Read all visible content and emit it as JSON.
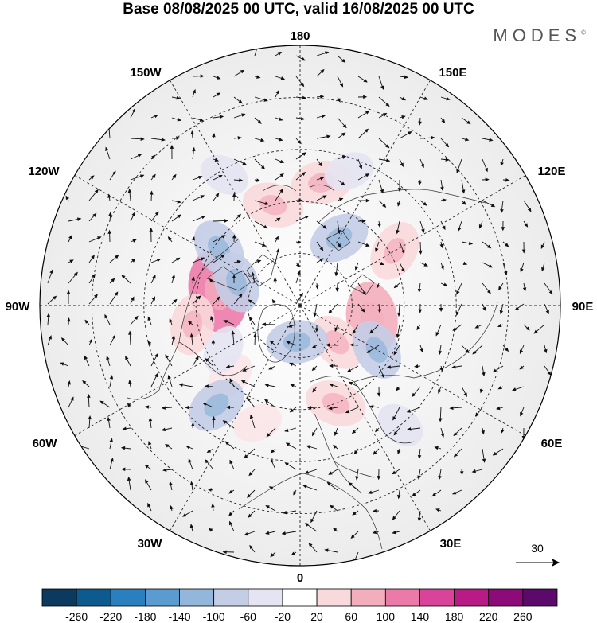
{
  "title": "Base 08/08/2025 00 UTC, valid 16/08/2025 00 UTC",
  "brand": "MODES",
  "brand_mark": "©",
  "longitude_labels": {
    "top": "180",
    "bottom": "0",
    "left": "90W",
    "right": "90E",
    "upper_left": "150W",
    "upper_right": "150E",
    "mid_upper_left": "120W",
    "mid_upper_right": "120E",
    "mid_lower_left": "60W",
    "mid_lower_right": "60E",
    "lower_left": "30W",
    "lower_right": "30E"
  },
  "vector_reference": {
    "value": "30",
    "icon": "arrow-right-icon"
  },
  "colorbar": {
    "ticks": [
      "-260",
      "-220",
      "-180",
      "-140",
      "-100",
      "-60",
      "-20",
      "20",
      "60",
      "100",
      "140",
      "180",
      "220",
      "260"
    ],
    "colors": [
      "#0b3a5e",
      "#0d5a8f",
      "#2a7fbf",
      "#5a9ccf",
      "#93b6db",
      "#c3cde6",
      "#e4e4f2",
      "#ffffff",
      "#f8d9dc",
      "#f3aebd",
      "#ec7aa8",
      "#d9449a",
      "#b81a86",
      "#8c0b78",
      "#5b0a6b"
    ]
  },
  "map": {
    "projection": "north-polar-stereographic",
    "graticule": "dashed",
    "shading": [
      {
        "type": "positive",
        "lon": -100,
        "colat": 32,
        "level": 140
      },
      {
        "type": "positive",
        "lon": -80,
        "colat": 42,
        "level": 60
      },
      {
        "type": "positive",
        "lon": -165,
        "colat": 40,
        "level": 60
      },
      {
        "type": "positive",
        "lon": 170,
        "colat": 48,
        "level": 60
      },
      {
        "type": "positive",
        "lon": 80,
        "colat": 28,
        "level": 100
      },
      {
        "type": "positive",
        "lon": 120,
        "colat": 42,
        "level": 60
      },
      {
        "type": "positive",
        "lon": 45,
        "colat": 20,
        "level": 60
      },
      {
        "type": "positive",
        "lon": 20,
        "colat": 40,
        "level": 60
      },
      {
        "type": "positive",
        "lon": -20,
        "colat": 48,
        "level": 20
      },
      {
        "type": "positive",
        "lon": -45,
        "colat": 38,
        "level": 20
      },
      {
        "type": "negative",
        "lon": -125,
        "colat": 38,
        "level": -60
      },
      {
        "type": "negative",
        "lon": -110,
        "colat": 26,
        "level": -60
      },
      {
        "type": "negative",
        "lon": -60,
        "colat": 34,
        "level": -20
      },
      {
        "type": "negative",
        "lon": -40,
        "colat": 50,
        "level": -60
      },
      {
        "type": "negative",
        "lon": -5,
        "colat": 14,
        "level": -60
      },
      {
        "type": "negative",
        "lon": 60,
        "colat": 34,
        "level": -60
      },
      {
        "type": "negative",
        "lon": 150,
        "colat": 30,
        "level": -60
      },
      {
        "type": "negative",
        "lon": 160,
        "colat": 55,
        "level": -20
      },
      {
        "type": "negative",
        "lon": 40,
        "colat": 60,
        "level": -20
      },
      {
        "type": "negative",
        "lon": -150,
        "colat": 58,
        "level": -20
      }
    ]
  }
}
